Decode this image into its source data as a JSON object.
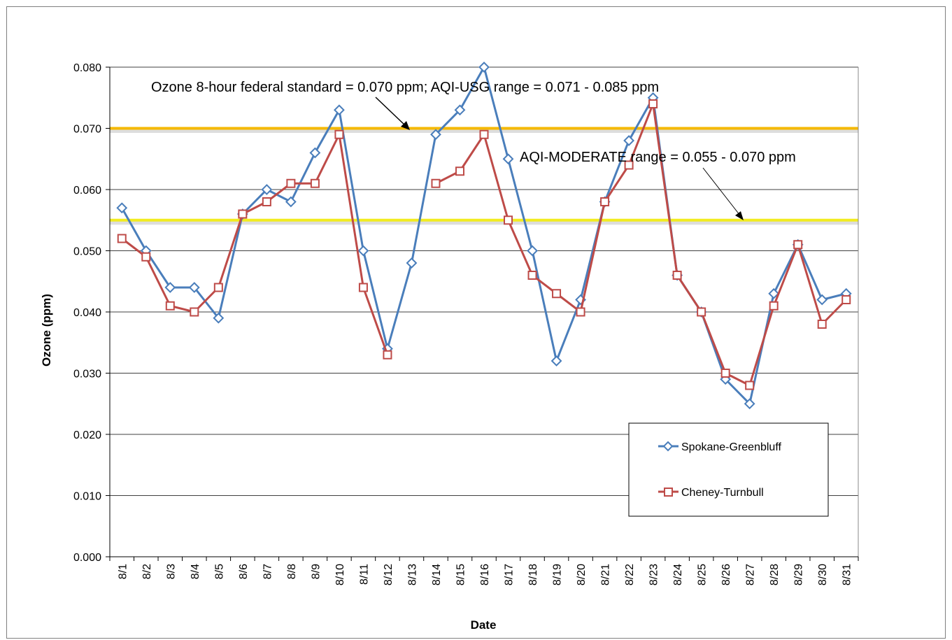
{
  "chart_data": {
    "type": "line",
    "xlabel": "Date",
    "ylabel": "Ozone (ppm)",
    "ylim": [
      0,
      0.08
    ],
    "yticks": [
      "0.000",
      "0.010",
      "0.020",
      "0.030",
      "0.040",
      "0.050",
      "0.060",
      "0.070",
      "0.080"
    ],
    "categories": [
      "8/1",
      "8/2",
      "8/3",
      "8/4",
      "8/5",
      "8/6",
      "8/7",
      "8/8",
      "8/9",
      "8/10",
      "8/11",
      "8/12",
      "8/13",
      "8/14",
      "8/15",
      "8/16",
      "8/17",
      "8/18",
      "8/19",
      "8/20",
      "8/21",
      "8/22",
      "8/23",
      "8/24",
      "8/25",
      "8/26",
      "8/27",
      "8/28",
      "8/29",
      "8/30",
      "8/31"
    ],
    "grid": "horizontal",
    "legend_position": "bottom-right",
    "series": [
      {
        "name": "Spokane-Greenbluff",
        "color": "#4a7ebb",
        "marker": "diamond",
        "values": [
          0.057,
          0.05,
          0.044,
          0.044,
          0.039,
          0.056,
          0.06,
          0.058,
          0.066,
          0.073,
          0.05,
          0.034,
          0.048,
          0.069,
          0.073,
          0.08,
          0.065,
          0.05,
          0.032,
          0.042,
          0.058,
          0.068,
          0.075,
          0.046,
          0.04,
          0.029,
          0.025,
          0.043,
          0.051,
          0.042,
          0.043
        ]
      },
      {
        "name": "Cheney-Turnbull",
        "color": "#be4b48",
        "marker": "square",
        "values": [
          0.052,
          0.049,
          0.041,
          0.04,
          0.044,
          0.056,
          0.058,
          0.061,
          0.061,
          0.069,
          0.044,
          0.033,
          null,
          0.061,
          0.063,
          0.069,
          0.055,
          0.046,
          0.043,
          0.04,
          0.058,
          0.064,
          0.074,
          0.046,
          0.04,
          0.03,
          0.028,
          0.041,
          0.051,
          0.038,
          0.042
        ]
      }
    ],
    "reference_lines": [
      {
        "value": 0.07,
        "color": "#f5b800"
      },
      {
        "value": 0.055,
        "color": "#f2ec1f"
      }
    ],
    "annotations": [
      {
        "text": "Ozone 8-hour federal standard = 0.070 ppm; AQI-USG range = 0.071 - 0.085 ppm"
      },
      {
        "text": "AQI-MODERATE range = 0.055 - 0.070 ppm"
      }
    ]
  }
}
